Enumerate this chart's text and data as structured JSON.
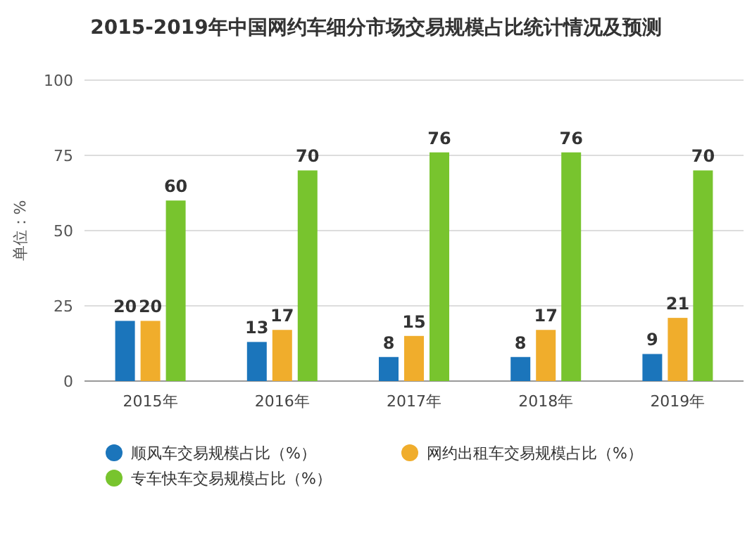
{
  "chart_data": {
    "type": "bar",
    "title": "2015-2019年中国网约车细分市场交易规模占比统计情况及预测",
    "ylabel": "单位：%",
    "categories": [
      "2015年",
      "2016年",
      "2017年",
      "2018年",
      "2019年"
    ],
    "series": [
      {
        "name": "顺风车交易规模占比（%）",
        "color": "#1b75bb",
        "values": [
          20,
          13,
          8,
          8,
          9
        ]
      },
      {
        "name": "网约出租车交易规模占比（%）",
        "color": "#f0ad2c",
        "values": [
          20,
          17,
          15,
          17,
          21
        ]
      },
      {
        "name": "专车快车交易规模占比（%）",
        "color": "#78c42e",
        "values": [
          60,
          70,
          76,
          76,
          70
        ]
      }
    ],
    "ylim": [
      0,
      100
    ],
    "yticks": [
      0,
      25,
      50,
      75,
      100
    ],
    "grid": "y",
    "legend": "bottom",
    "data_labels": true
  }
}
